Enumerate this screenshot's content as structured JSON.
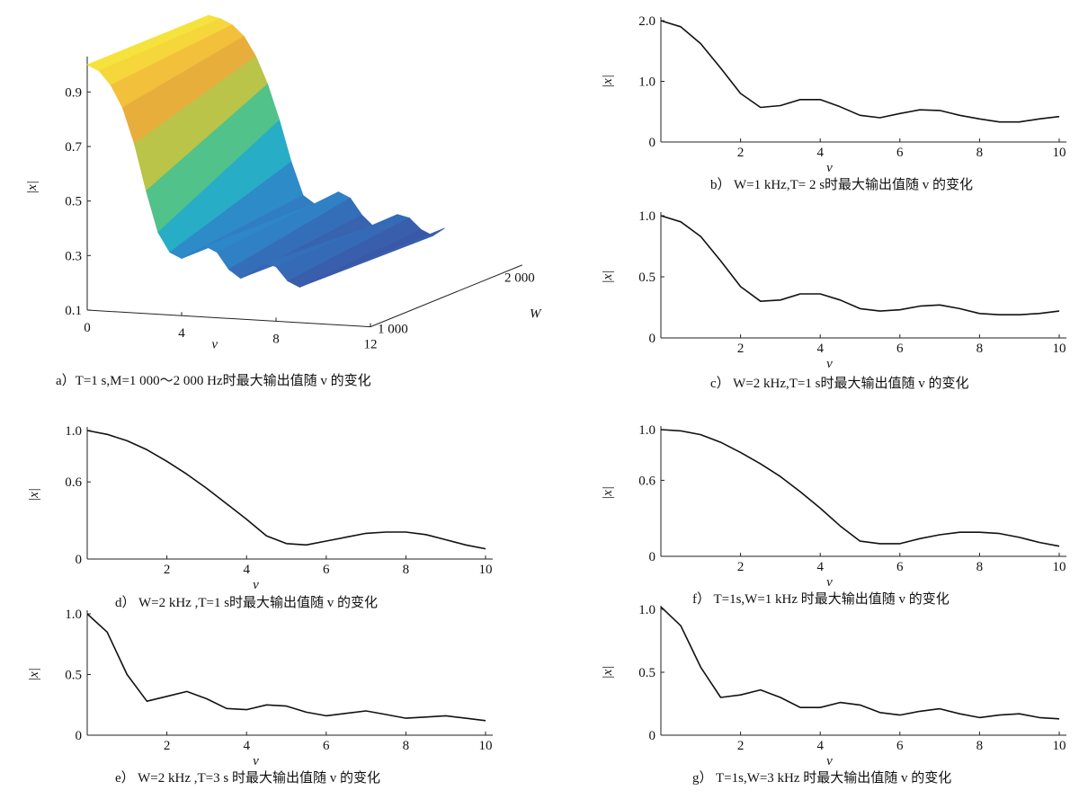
{
  "chart_data": [
    {
      "id": "a",
      "type": "surface",
      "caption": "a）T=1 s,M=1 000～2 000 Hz时最大输出值随 v 的变化",
      "xlabel": "v",
      "ylabel": "|x|",
      "wlabel": "W",
      "x_ticks": [
        "0",
        "4",
        "8",
        "12"
      ],
      "w_ticks": [
        "1 000",
        "2 000"
      ],
      "z_ticks": [
        "0.1",
        "0.3",
        "0.5",
        "0.7",
        "0.9"
      ],
      "xlim": [
        0,
        12
      ],
      "wlim": [
        1000,
        2000
      ],
      "zlim": [
        0.1,
        1.0
      ],
      "colormap": [
        "#3d4ea0",
        "#2f84c8",
        "#25b4c6",
        "#5cc57a",
        "#c8c440",
        "#f0a83a",
        "#f6e63c"
      ],
      "series": [
        {
          "name": "W=1 000",
          "x": [
            0,
            0.5,
            1,
            1.5,
            2,
            2.5,
            3,
            3.5,
            4,
            4.5,
            5,
            5.5,
            6,
            6.5,
            7,
            7.5,
            8,
            8.5,
            9,
            9.5,
            10
          ],
          "z": [
            1.0,
            0.98,
            0.93,
            0.85,
            0.72,
            0.55,
            0.4,
            0.33,
            0.31,
            0.33,
            0.36,
            0.34,
            0.28,
            0.25,
            0.27,
            0.31,
            0.3,
            0.25,
            0.23,
            0.25,
            0.27
          ]
        },
        {
          "name": "W=2 000",
          "x": [
            0,
            0.5,
            1,
            1.5,
            2,
            2.5,
            3,
            3.5,
            4,
            4.5,
            5,
            5.5,
            6,
            6.5,
            7,
            7.5,
            8,
            8.5,
            9,
            9.5,
            10
          ],
          "z": [
            1.0,
            0.99,
            0.97,
            0.93,
            0.86,
            0.76,
            0.63,
            0.48,
            0.36,
            0.33,
            0.35,
            0.38,
            0.36,
            0.3,
            0.26,
            0.28,
            0.31,
            0.3,
            0.26,
            0.24,
            0.27
          ]
        }
      ]
    },
    {
      "id": "b",
      "type": "line",
      "caption": "b） W=1 kHz,T= 2 s时最大输出值随 v 的变化",
      "xlabel": "v",
      "ylabel": "|x|",
      "xlim": [
        0,
        10
      ],
      "ylim": [
        0,
        2.0
      ],
      "x_ticks": [
        2,
        4,
        6,
        8,
        10
      ],
      "y_ticks": [
        0,
        1.0,
        2.0
      ],
      "y_tick_labels": [
        "0",
        "1.0",
        "2.0"
      ],
      "x": [
        0,
        0.5,
        1,
        1.5,
        2,
        2.5,
        3,
        3.5,
        4,
        4.5,
        5,
        5.5,
        6,
        6.5,
        7,
        7.5,
        8,
        8.5,
        9,
        9.5,
        10
      ],
      "y": [
        2.0,
        1.9,
        1.62,
        1.22,
        0.8,
        0.57,
        0.6,
        0.7,
        0.7,
        0.58,
        0.44,
        0.4,
        0.47,
        0.53,
        0.52,
        0.44,
        0.38,
        0.33,
        0.33,
        0.38,
        0.42
      ]
    },
    {
      "id": "c",
      "type": "line",
      "caption": "c） W=2 kHz,T=1 s时最大输出值随 v 的变化",
      "xlabel": "v",
      "ylabel": "|x|",
      "xlim": [
        0,
        10
      ],
      "ylim": [
        0,
        1.0
      ],
      "x_ticks": [
        2,
        4,
        6,
        8,
        10
      ],
      "y_ticks": [
        0,
        0.5,
        1.0
      ],
      "y_tick_labels": [
        "0",
        "0.5",
        "1.0"
      ],
      "x": [
        0,
        0.5,
        1,
        1.5,
        2,
        2.5,
        3,
        3.5,
        4,
        4.5,
        5,
        5.5,
        6,
        6.5,
        7,
        7.5,
        8,
        8.5,
        9,
        9.5,
        10
      ],
      "y": [
        1.0,
        0.95,
        0.83,
        0.63,
        0.42,
        0.3,
        0.31,
        0.36,
        0.36,
        0.31,
        0.24,
        0.22,
        0.23,
        0.26,
        0.27,
        0.24,
        0.2,
        0.19,
        0.19,
        0.2,
        0.22
      ]
    },
    {
      "id": "d",
      "type": "line",
      "caption": "d） W=2 kHz ,T=1 s时最大输出值随 v 的变化",
      "xlabel": "v",
      "ylabel": "|x|",
      "xlim": [
        0,
        10
      ],
      "ylim": [
        0,
        1.0
      ],
      "x_ticks": [
        2,
        4,
        6,
        8,
        10
      ],
      "y_ticks": [
        0,
        0.6,
        1.0
      ],
      "y_tick_labels": [
        "0",
        "0.6",
        "1.0"
      ],
      "x": [
        0,
        0.5,
        1,
        1.5,
        2,
        2.5,
        3,
        3.5,
        4,
        4.5,
        5,
        5.5,
        6,
        6.5,
        7,
        7.5,
        8,
        8.5,
        9,
        9.5,
        10
      ],
      "y": [
        1.0,
        0.97,
        0.92,
        0.85,
        0.76,
        0.66,
        0.55,
        0.43,
        0.31,
        0.18,
        0.12,
        0.11,
        0.14,
        0.17,
        0.2,
        0.21,
        0.21,
        0.19,
        0.15,
        0.11,
        0.08
      ]
    },
    {
      "id": "f",
      "type": "line",
      "caption": "f） T=1s,W=1 kHz 时最大输出值随 v 的变化",
      "xlabel": "v",
      "ylabel": "|x|",
      "xlim": [
        0,
        10
      ],
      "ylim": [
        0,
        1.0
      ],
      "x_ticks": [
        2,
        4,
        6,
        8,
        10
      ],
      "y_ticks": [
        0,
        0.6,
        1.0
      ],
      "y_tick_labels": [
        "0",
        "0.6",
        "1.0"
      ],
      "x": [
        0,
        0.5,
        1,
        1.5,
        2,
        2.5,
        3,
        3.5,
        4,
        4.5,
        5,
        5.5,
        6,
        6.5,
        7,
        7.5,
        8,
        8.5,
        9,
        9.5,
        10
      ],
      "y": [
        1.0,
        0.99,
        0.96,
        0.9,
        0.82,
        0.73,
        0.63,
        0.51,
        0.38,
        0.24,
        0.12,
        0.1,
        0.1,
        0.14,
        0.17,
        0.19,
        0.19,
        0.18,
        0.15,
        0.11,
        0.08
      ]
    },
    {
      "id": "e",
      "type": "line",
      "caption": "e） W=2 kHz ,T=3 s 时最大输出值随 v 的变化",
      "xlabel": "v",
      "ylabel": "|x|",
      "xlim": [
        0,
        10
      ],
      "ylim": [
        0,
        1.0
      ],
      "x_ticks": [
        2,
        4,
        6,
        8,
        10
      ],
      "y_ticks": [
        0,
        0.5,
        1.0
      ],
      "y_tick_labels": [
        "0",
        "0.5",
        "1.0"
      ],
      "x": [
        0,
        0.5,
        1,
        1.5,
        2,
        2.5,
        3,
        3.5,
        4,
        4.5,
        5,
        5.5,
        6,
        6.5,
        7,
        7.5,
        8,
        8.5,
        9,
        9.5,
        10
      ],
      "y": [
        1.0,
        0.85,
        0.5,
        0.28,
        0.32,
        0.36,
        0.3,
        0.22,
        0.21,
        0.25,
        0.24,
        0.19,
        0.16,
        0.18,
        0.2,
        0.17,
        0.14,
        0.15,
        0.16,
        0.14,
        0.12
      ]
    },
    {
      "id": "g",
      "type": "line",
      "caption": "g） T=1s,W=3 kHz 时最大输出值随 v 的变化",
      "xlabel": "v",
      "ylabel": "|x|",
      "xlim": [
        0,
        10
      ],
      "ylim": [
        0,
        1.0
      ],
      "x_ticks": [
        2,
        4,
        6,
        8,
        10
      ],
      "y_ticks": [
        0,
        0.5,
        1.0
      ],
      "y_tick_labels": [
        "0",
        "0.5",
        "1.0"
      ],
      "x": [
        0,
        0.5,
        1,
        1.5,
        2,
        2.5,
        3,
        3.5,
        4,
        4.5,
        5,
        5.5,
        6,
        6.5,
        7,
        7.5,
        8,
        8.5,
        9,
        9.5,
        10
      ],
      "y": [
        1.02,
        0.87,
        0.54,
        0.3,
        0.32,
        0.36,
        0.3,
        0.22,
        0.22,
        0.26,
        0.24,
        0.18,
        0.16,
        0.19,
        0.21,
        0.17,
        0.14,
        0.16,
        0.17,
        0.14,
        0.13
      ]
    }
  ]
}
